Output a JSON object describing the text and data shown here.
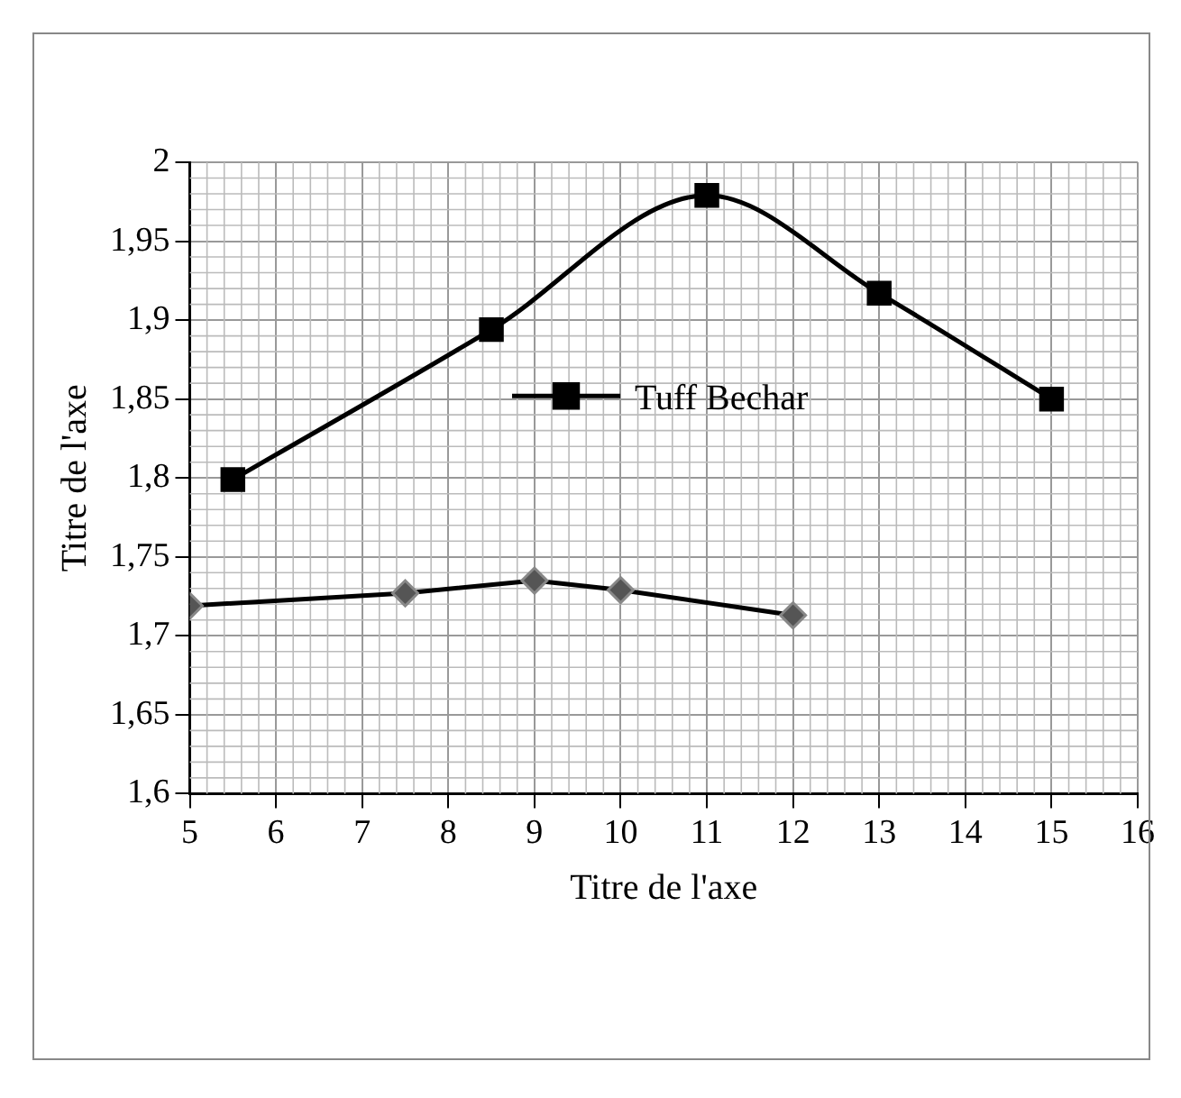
{
  "chart_data": {
    "type": "line",
    "xlabel": "Titre de l'axe",
    "ylabel": "Titre de l'axe",
    "xlim": [
      5,
      16
    ],
    "xticks": [
      5,
      6,
      7,
      8,
      9,
      10,
      11,
      12,
      13,
      14,
      15,
      16
    ],
    "ylim": [
      1.6,
      2
    ],
    "yticks": [
      {
        "value": 1.6,
        "label": "1,6"
      },
      {
        "value": 1.65,
        "label": "1,65"
      },
      {
        "value": 1.7,
        "label": "1,7"
      },
      {
        "value": 1.75,
        "label": "1,75"
      },
      {
        "value": 1.8,
        "label": "1,8"
      },
      {
        "value": 1.85,
        "label": "1,85"
      },
      {
        "value": 1.9,
        "label": "1,9"
      },
      {
        "value": 1.95,
        "label": "1,95"
      },
      {
        "value": 2,
        "label": "2"
      }
    ],
    "grid": true,
    "legend": "center",
    "series": [
      {
        "name": "Tuff Bechar",
        "color": "#000000",
        "marker": "square",
        "x": [
          5.5,
          8.5,
          11,
          13,
          15
        ],
        "values": [
          1.799,
          1.894,
          1.979,
          1.917,
          1.85
        ]
      },
      {
        "color": "#555555",
        "marker": "diamond",
        "x": [
          5,
          7.5,
          9,
          10,
          12
        ],
        "values": [
          1.719,
          1.727,
          1.735,
          1.729,
          1.713
        ]
      }
    ]
  }
}
